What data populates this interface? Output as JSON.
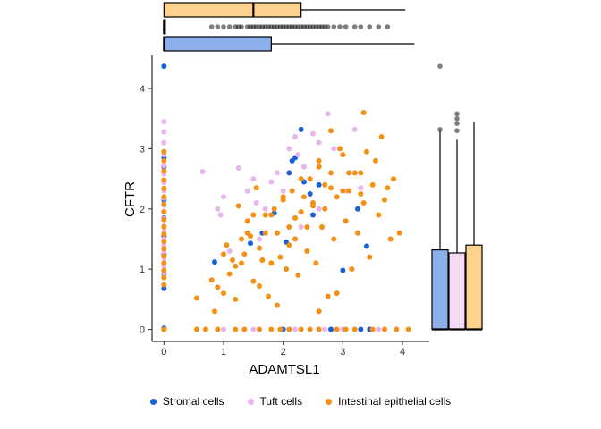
{
  "chart_data": {
    "type": "scatter",
    "title": "",
    "xlabel": "ADAMTSL1",
    "ylabel": "CFTR",
    "xlim": [
      -0.2,
      4.45
    ],
    "ylim": [
      -0.2,
      4.55
    ],
    "x_ticks": [
      "0",
      "1",
      "2",
      "3",
      "4"
    ],
    "y_ticks": [
      "0",
      "1",
      "2",
      "3",
      "4"
    ],
    "grid": false,
    "legend_position": "bottom",
    "marginal": "boxplot",
    "series": [
      {
        "name": "Stromal cells",
        "color": "#1a5fd6",
        "box_fill": "#8db0ec",
        "points": [
          [
            0,
            4.37
          ],
          [
            0,
            2.85
          ],
          [
            0,
            2.7
          ],
          [
            0,
            2.45
          ],
          [
            0,
            2.15
          ],
          [
            0,
            1.85
          ],
          [
            0,
            1.55
          ],
          [
            0,
            1.25
          ],
          [
            0,
            0.92
          ],
          [
            0,
            0.68
          ],
          [
            0,
            0.02
          ],
          [
            0,
            0
          ],
          [
            0.85,
            1.12
          ],
          [
            1.45,
            1.43
          ],
          [
            1.65,
            1.6
          ],
          [
            1.85,
            1.93
          ],
          [
            2.05,
            1.45
          ],
          [
            2.1,
            2.6
          ],
          [
            2.15,
            2.8
          ],
          [
            2.2,
            2.85
          ],
          [
            2.3,
            3.32
          ],
          [
            2.45,
            2.25
          ],
          [
            2.6,
            2.4
          ],
          [
            2.35,
            2.45
          ],
          [
            2.5,
            1.9
          ],
          [
            3.25,
            2.0
          ],
          [
            3.4,
            1.38
          ],
          [
            3.0,
            0.98
          ],
          [
            2.0,
            0
          ],
          [
            2.8,
            0
          ],
          [
            3.3,
            0
          ],
          [
            3.45,
            0
          ]
        ]
      },
      {
        "name": "Tuft cells",
        "color": "#e8b5ec",
        "box_fill": "#f5d9f5",
        "points": [
          [
            0,
            3.45
          ],
          [
            0,
            3.28
          ],
          [
            0,
            3.1
          ],
          [
            0,
            2.9
          ],
          [
            0,
            2.72
          ],
          [
            0,
            2.58
          ],
          [
            0,
            2.44
          ],
          [
            0,
            2.3
          ],
          [
            0,
            2.18
          ],
          [
            0,
            2.06
          ],
          [
            0,
            1.96
          ],
          [
            0,
            1.84
          ],
          [
            0,
            1.72
          ],
          [
            0,
            1.62
          ],
          [
            0,
            1.5
          ],
          [
            0,
            1.4
          ],
          [
            0,
            1.28
          ],
          [
            0,
            1.18
          ],
          [
            0,
            1.05
          ],
          [
            0,
            0.94
          ],
          [
            0,
            0
          ],
          [
            0.65,
            2.62
          ],
          [
            0.9,
            2.0
          ],
          [
            0.95,
            1.9
          ],
          [
            1.0,
            2.2
          ],
          [
            1.1,
            1.3
          ],
          [
            1.25,
            2.68
          ],
          [
            1.4,
            2.3
          ],
          [
            1.5,
            2.5
          ],
          [
            1.55,
            2.1
          ],
          [
            1.7,
            2.0
          ],
          [
            1.8,
            2.45
          ],
          [
            1.9,
            2.6
          ],
          [
            2.0,
            2.3
          ],
          [
            2.1,
            3.0
          ],
          [
            2.2,
            3.2
          ],
          [
            2.25,
            2.9
          ],
          [
            2.35,
            2.7
          ],
          [
            2.5,
            3.25
          ],
          [
            2.6,
            3.1
          ],
          [
            2.75,
            3.58
          ],
          [
            2.85,
            3.0
          ],
          [
            3.05,
            2.3
          ],
          [
            3.2,
            3.32
          ],
          [
            3.3,
            2.35
          ],
          [
            2.3,
            1.7
          ],
          [
            2.6,
            2.0
          ],
          [
            1.6,
            1.5
          ],
          [
            1.0,
            0
          ],
          [
            1.5,
            0
          ],
          [
            2.2,
            0
          ],
          [
            2.7,
            0
          ],
          [
            3.0,
            0
          ],
          [
            3.6,
            0
          ]
        ]
      },
      {
        "name": "Intestinal epithelial cells",
        "color": "#f39015",
        "box_fill": "#fdd18e",
        "points": [
          [
            0,
            2.95
          ],
          [
            0,
            2.8
          ],
          [
            0,
            2.63
          ],
          [
            0,
            2.48
          ],
          [
            0,
            2.34
          ],
          [
            0,
            2.2
          ],
          [
            0,
            2.08
          ],
          [
            0,
            1.95
          ],
          [
            0,
            1.82
          ],
          [
            0,
            1.7
          ],
          [
            0,
            1.58
          ],
          [
            0,
            1.46
          ],
          [
            0,
            1.34
          ],
          [
            0,
            1.22
          ],
          [
            0,
            1.1
          ],
          [
            0,
            0.98
          ],
          [
            0,
            0.86
          ],
          [
            0,
            0.74
          ],
          [
            0,
            0
          ],
          [
            0.55,
            0.52
          ],
          [
            0.8,
            0.82
          ],
          [
            0.85,
            0.3
          ],
          [
            0.9,
            0.7
          ],
          [
            1.0,
            1.25
          ],
          [
            1.05,
            1.4
          ],
          [
            1.1,
            0.92
          ],
          [
            1.15,
            1.15
          ],
          [
            1.2,
            1.05
          ],
          [
            1.25,
            2.05
          ],
          [
            1.3,
            1.5
          ],
          [
            1.35,
            1.25
          ],
          [
            1.4,
            1.8
          ],
          [
            1.45,
            1.55
          ],
          [
            1.5,
            1.9
          ],
          [
            1.55,
            2.35
          ],
          [
            1.6,
            0.72
          ],
          [
            1.65,
            1.15
          ],
          [
            1.7,
            1.6
          ],
          [
            1.75,
            0.55
          ],
          [
            1.8,
            1.9
          ],
          [
            1.85,
            2.0
          ],
          [
            1.9,
            0.4
          ],
          [
            1.95,
            1.2
          ],
          [
            2.0,
            2.15
          ],
          [
            2.05,
            1.0
          ],
          [
            2.1,
            1.7
          ],
          [
            2.15,
            2.3
          ],
          [
            2.2,
            1.5
          ],
          [
            2.25,
            0.9
          ],
          [
            2.3,
            1.95
          ],
          [
            2.35,
            2.2
          ],
          [
            2.4,
            1.3
          ],
          [
            2.45,
            2.5
          ],
          [
            2.5,
            2.05
          ],
          [
            2.55,
            1.1
          ],
          [
            2.6,
            2.7
          ],
          [
            2.65,
            1.7
          ],
          [
            2.7,
            2.4
          ],
          [
            2.75,
            0.55
          ],
          [
            2.8,
            2.6
          ],
          [
            2.85,
            1.5
          ],
          [
            2.9,
            2.2
          ],
          [
            2.95,
            3.0
          ],
          [
            3.0,
            2.9
          ],
          [
            3.05,
            1.8
          ],
          [
            3.1,
            2.3
          ],
          [
            3.15,
            1.0
          ],
          [
            3.2,
            2.6
          ],
          [
            3.25,
            1.6
          ],
          [
            3.3,
            2.25
          ],
          [
            3.35,
            2.1
          ],
          [
            3.4,
            2.95
          ],
          [
            3.45,
            1.2
          ],
          [
            3.5,
            2.4
          ],
          [
            3.55,
            2.8
          ],
          [
            3.6,
            1.9
          ],
          [
            3.7,
            2.15
          ],
          [
            3.75,
            2.35
          ],
          [
            3.8,
            1.5
          ],
          [
            3.85,
            2.5
          ],
          [
            3.95,
            1.6
          ],
          [
            1.3,
            1.1
          ],
          [
            1.6,
            1.35
          ],
          [
            1.9,
            1.6
          ],
          [
            2.2,
            1.85
          ],
          [
            2.5,
            2.1
          ],
          [
            2.8,
            2.35
          ],
          [
            3.1,
            2.6
          ],
          [
            1.4,
            1.6
          ],
          [
            1.7,
            1.9
          ],
          [
            2.0,
            2.2
          ],
          [
            2.3,
            2.5
          ],
          [
            2.6,
            2.8
          ],
          [
            1.2,
            0.5
          ],
          [
            1.5,
            0.8
          ],
          [
            1.8,
            1.1
          ],
          [
            2.1,
            1.4
          ],
          [
            2.4,
            1.7
          ],
          [
            2.7,
            2.0
          ],
          [
            3.0,
            2.3
          ],
          [
            3.3,
            2.6
          ],
          [
            2.6,
            0.3
          ],
          [
            2.9,
            0.6
          ],
          [
            1.0,
            0.6
          ],
          [
            3.65,
            3.2
          ],
          [
            3.35,
            3.6
          ],
          [
            2.8,
            3.3
          ],
          [
            0.55,
            0
          ],
          [
            0.7,
            0
          ],
          [
            0.9,
            0
          ],
          [
            1.2,
            0
          ],
          [
            1.35,
            0
          ],
          [
            1.6,
            0
          ],
          [
            1.8,
            0
          ],
          [
            1.95,
            0
          ],
          [
            2.1,
            0
          ],
          [
            2.3,
            0
          ],
          [
            2.45,
            0
          ],
          [
            2.6,
            0
          ],
          [
            2.9,
            0
          ],
          [
            3.05,
            0
          ],
          [
            3.2,
            0
          ],
          [
            3.5,
            0
          ],
          [
            3.7,
            0
          ],
          [
            3.9,
            0
          ],
          [
            4.1,
            0
          ]
        ]
      }
    ],
    "marginal_x": [
      {
        "name": "Intestinal epithelial cells",
        "q1": 0,
        "median": 1.5,
        "q3": 2.3,
        "whisker_low": 0,
        "whisker_high": 4.05,
        "outliers": []
      },
      {
        "name": "Tuft cells",
        "q1": 0,
        "median": 0,
        "q3": 0.02,
        "whisker_low": 0,
        "whisker_high": 0.02,
        "outliers": [
          0.8,
          0.9,
          1.0,
          1.1,
          1.2,
          1.25,
          1.3,
          1.4,
          1.45,
          1.5,
          1.55,
          1.6,
          1.65,
          1.7,
          1.75,
          1.8,
          1.85,
          1.9,
          1.95,
          2.0,
          2.05,
          2.1,
          2.15,
          2.2,
          2.25,
          2.3,
          2.35,
          2.4,
          2.45,
          2.5,
          2.55,
          2.6,
          2.65,
          2.7,
          2.75,
          2.85,
          2.95,
          3.05,
          3.2,
          3.3,
          3.45,
          3.6,
          3.75
        ]
      },
      {
        "name": "Stromal cells",
        "q1": 0,
        "median": 0,
        "q3": 1.8,
        "whisker_low": 0,
        "whisker_high": 4.2,
        "outliers": []
      }
    ],
    "marginal_y": [
      {
        "name": "Stromal cells",
        "q1": 0,
        "median": 0,
        "q3": 1.32,
        "whisker_low": 0,
        "whisker_high": 3.3,
        "outliers": [
          3.32,
          4.37
        ]
      },
      {
        "name": "Tuft cells",
        "q1": 0,
        "median": 0,
        "q3": 1.27,
        "whisker_low": 0,
        "whisker_high": 3.15,
        "outliers": [
          3.3,
          3.42,
          3.5,
          3.58
        ]
      },
      {
        "name": "Intestinal epithelial cells",
        "q1": 0,
        "median": 0,
        "q3": 1.4,
        "whisker_low": 0,
        "whisker_high": 3.45,
        "outliers": []
      }
    ]
  }
}
